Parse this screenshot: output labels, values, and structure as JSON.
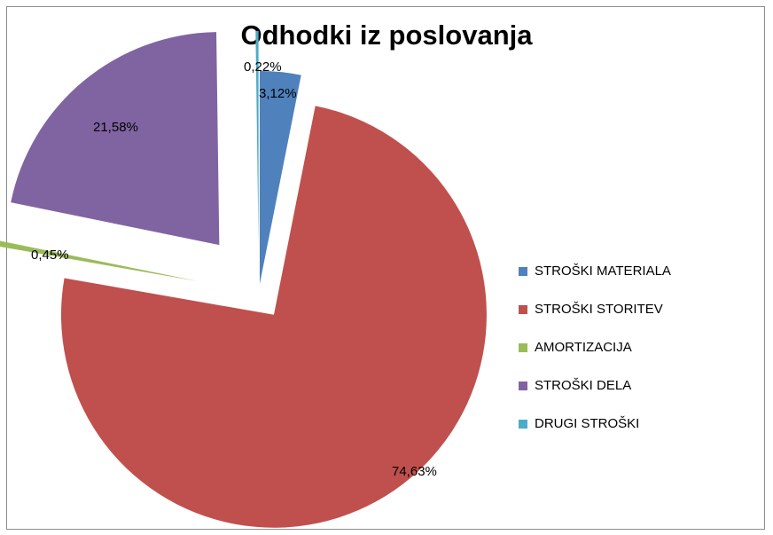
{
  "chart_data": {
    "type": "pie",
    "title": "Odhodki iz poslovanja",
    "legend_position": "right",
    "exploded": true,
    "slices": [
      {
        "label": "STROŠKI MATERIALA",
        "value": 3.12,
        "value_label": "3,12%",
        "color": "#4f81bd"
      },
      {
        "label": "STROŠKI STORITEV",
        "value": 74.63,
        "value_label": "74,63%",
        "color": "#c0504d"
      },
      {
        "label": "AMORTIZACIJA",
        "value": 0.45,
        "value_label": "0,45%",
        "color": "#9bbb59"
      },
      {
        "label": "STROŠKI DELA",
        "value": 21.58,
        "value_label": "21,58%",
        "color": "#8064a2"
      },
      {
        "label": "DRUGI STROŠKI",
        "value": 0.22,
        "value_label": "0,22%",
        "color": "#4bacc6"
      }
    ]
  }
}
